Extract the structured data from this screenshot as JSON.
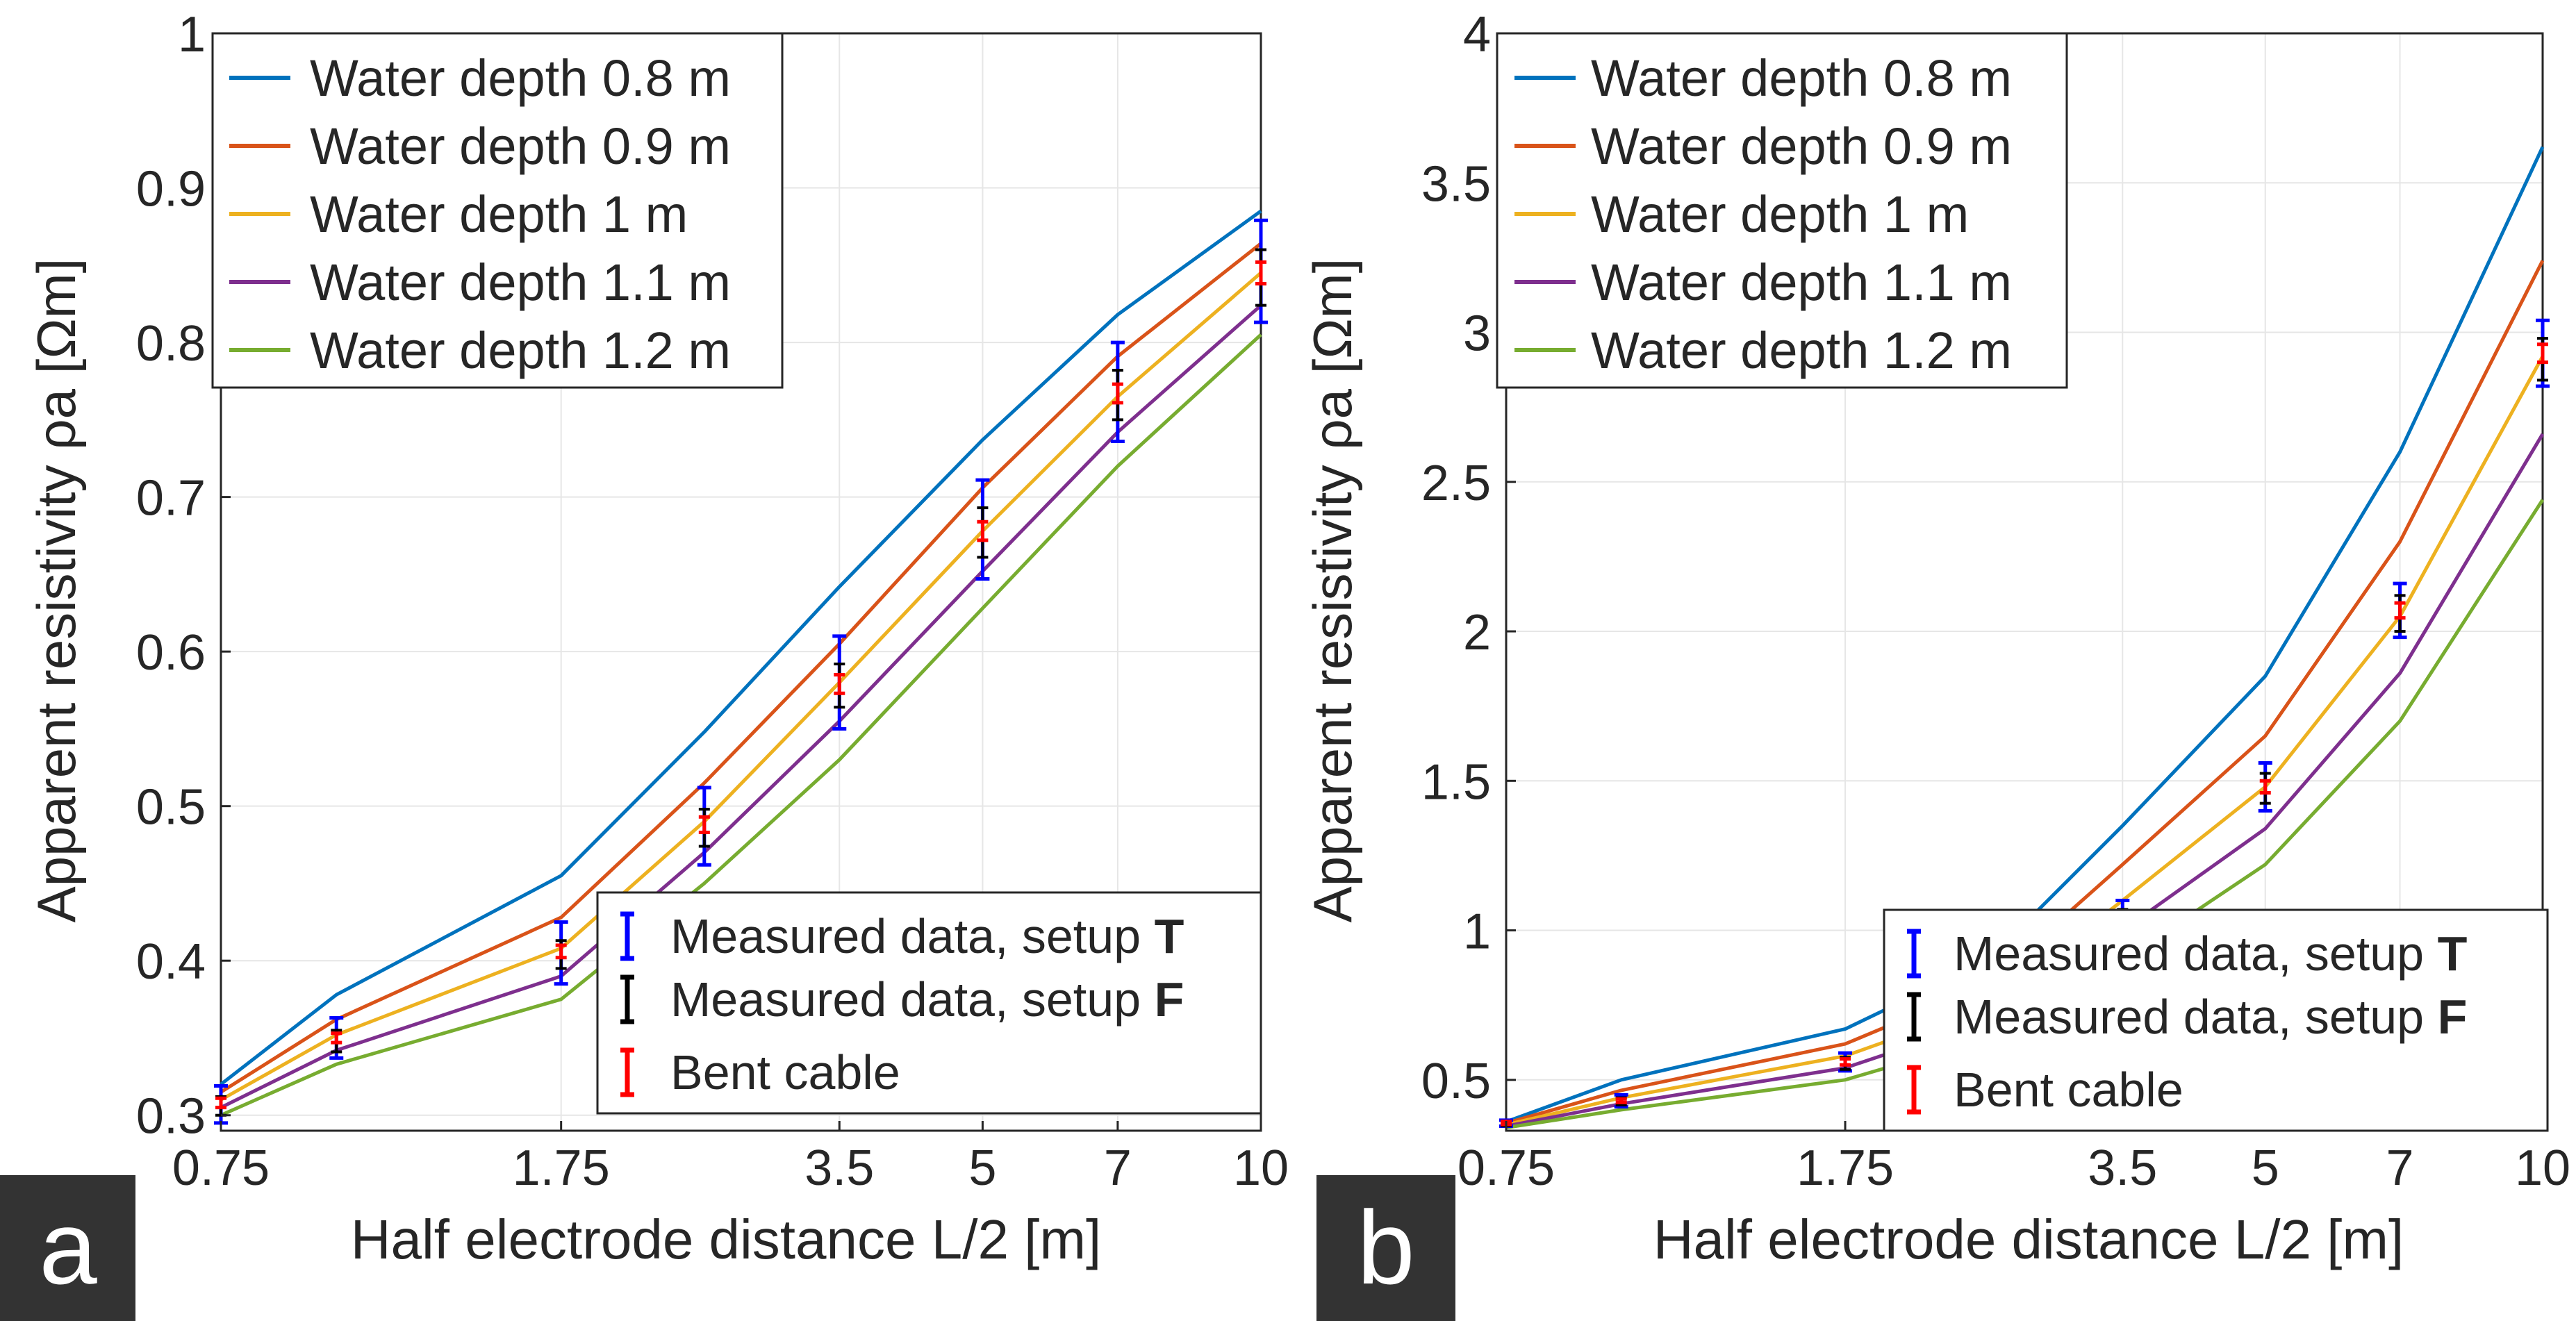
{
  "panels": [
    {
      "label": "a",
      "ylabel": "Apparent resistivity ρa [Ωm]",
      "xlabel": "Half electrode distance L/2 [m]",
      "chart_data": {
        "type": "line",
        "title": "",
        "xlabel": "Half electrode distance L/2 [m]",
        "ylabel": "Apparent resistivity ρa [Ωm]",
        "x_ticks": [
          0.75,
          1.75,
          3.5,
          5,
          7,
          10
        ],
        "x_ticks_scale": "log",
        "x_tick_labels": [
          "0.75",
          "1.75",
          "3.5",
          "5",
          "7",
          "10"
        ],
        "xlim": [
          0.75,
          10
        ],
        "ylim": [
          0.29,
          1.0
        ],
        "y_ticks": [
          0.3,
          0.4,
          0.5,
          0.6,
          0.7,
          0.8,
          0.9,
          1
        ],
        "y_tick_labels": [
          "0.3",
          "0.4",
          "0.5",
          "0.6",
          "0.7",
          "0.8",
          "0.9",
          "1"
        ],
        "grid": true,
        "x": [
          0.75,
          1.0,
          1.75,
          2.5,
          3.5,
          5,
          7,
          10
        ],
        "series": [
          {
            "name": "Water depth 0.8 m",
            "color": "#0072BD",
            "values": [
              0.32,
              0.378,
              0.455,
              0.548,
              0.642,
              0.737,
              0.818,
              0.885
            ]
          },
          {
            "name": "Water depth 0.9 m",
            "color": "#D95319",
            "values": [
              0.315,
              0.362,
              0.428,
              0.515,
              0.605,
              0.706,
              0.791,
              0.864
            ]
          },
          {
            "name": "Water depth 1 m",
            "color": "#EDB120",
            "values": [
              0.31,
              0.352,
              0.408,
              0.49,
              0.58,
              0.678,
              0.765,
              0.845
            ]
          },
          {
            "name": "Water depth 1.1 m",
            "color": "#7E2F8E",
            "values": [
              0.305,
              0.342,
              0.39,
              0.47,
              0.555,
              0.652,
              0.742,
              0.824
            ]
          },
          {
            "name": "Water depth 1.2 m",
            "color": "#77AC30",
            "values": [
              0.3,
              0.333,
              0.375,
              0.45,
              0.53,
              0.628,
              0.72,
              0.805
            ]
          }
        ],
        "measured": {
          "x": [
            0.75,
            1.0,
            1.75,
            2.5,
            3.5,
            5,
            7,
            10
          ],
          "setup_T": {
            "name": "Measured data, setup T",
            "color": "#0000FF",
            "values": [
              0.307,
              0.35,
              0.405,
              0.487,
              0.58,
              0.679,
              0.768,
              0.846
            ],
            "errors": [
              0.012,
              0.013,
              0.02,
              0.025,
              0.03,
              0.032,
              0.032,
              0.033
            ]
          },
          "setup_F": {
            "name": "Measured data, setup F",
            "color": "#000000",
            "values": [
              0.306,
              0.348,
              0.404,
              0.486,
              0.578,
              0.677,
              0.766,
              0.842
            ],
            "errors": [
              0.006,
              0.007,
              0.009,
              0.012,
              0.014,
              0.016,
              0.016,
              0.018
            ]
          },
          "bent_cable": {
            "name": "Bent cable",
            "color": "#FF0000",
            "values": [
              0.308,
              0.35,
              0.406,
              0.488,
              0.579,
              0.678,
              0.767,
              0.845
            ],
            "errors": [
              0.003,
              0.003,
              0.004,
              0.005,
              0.006,
              0.006,
              0.006,
              0.007
            ]
          }
        },
        "legend_lines_position": "top-left",
        "legend_markers_position": "bottom-right"
      }
    },
    {
      "label": "b",
      "ylabel": "Apparent resistivity ρa [Ωm]",
      "xlabel": "Half electrode distance L/2 [m]",
      "chart_data": {
        "type": "line",
        "title": "",
        "xlabel": "Half electrode distance L/2 [m]",
        "ylabel": "Apparent resistivity ρa [Ωm]",
        "x_ticks": [
          0.75,
          1.75,
          3.5,
          5,
          7,
          10
        ],
        "x_ticks_scale": "log",
        "x_tick_labels": [
          "0.75",
          "1.75",
          "3.5",
          "5",
          "7",
          "10"
        ],
        "xlim": [
          0.75,
          10
        ],
        "ylim": [
          0.33,
          4.0
        ],
        "y_ticks": [
          0.5,
          1,
          1.5,
          2,
          2.5,
          3,
          3.5,
          4
        ],
        "y_tick_labels": [
          "0.5",
          "1",
          "1.5",
          "2",
          "2.5",
          "3",
          "3.5",
          "4"
        ],
        "grid": true,
        "x": [
          0.75,
          1.0,
          1.75,
          2.5,
          3.5,
          5,
          7,
          10
        ],
        "series": [
          {
            "name": "Water depth 0.8 m",
            "color": "#0072BD",
            "values": [
              0.36,
              0.5,
              0.67,
              0.9,
              1.35,
              1.85,
              2.6,
              3.62
            ]
          },
          {
            "name": "Water depth 0.9 m",
            "color": "#D95319",
            "values": [
              0.355,
              0.465,
              0.62,
              0.82,
              1.22,
              1.65,
              2.3,
              3.24
            ]
          },
          {
            "name": "Water depth 1 m",
            "color": "#EDB120",
            "values": [
              0.35,
              0.44,
              0.58,
              0.75,
              1.1,
              1.48,
              2.05,
              2.92
            ]
          },
          {
            "name": "Water depth 1.1 m",
            "color": "#7E2F8E",
            "values": [
              0.345,
              0.42,
              0.54,
              0.7,
              1.0,
              1.34,
              1.86,
              2.66
            ]
          },
          {
            "name": "Water depth 1.2 m",
            "color": "#77AC30",
            "values": [
              0.34,
              0.4,
              0.5,
              0.64,
              0.9,
              1.22,
              1.7,
              2.44
            ]
          }
        ],
        "measured": {
          "x": [
            0.75,
            1.0,
            1.75,
            2.5,
            3.5,
            5,
            7,
            10
          ],
          "setup_T": {
            "name": "Measured data, setup T",
            "color": "#0000FF",
            "values": [
              0.355,
              0.43,
              0.56,
              0.75,
              1.04,
              1.48,
              2.07,
              2.93
            ],
            "errors": [
              0.01,
              0.02,
              0.03,
              0.04,
              0.06,
              0.08,
              0.09,
              0.11
            ]
          },
          "setup_F": {
            "name": "Measured data, setup F",
            "color": "#000000",
            "values": [
              0.354,
              0.428,
              0.555,
              0.745,
              1.035,
              1.475,
              2.06,
              2.91
            ],
            "errors": [
              0.008,
              0.012,
              0.02,
              0.025,
              0.035,
              0.05,
              0.06,
              0.07
            ]
          },
          "bent_cable": {
            "name": "Bent cable",
            "color": "#FF0000",
            "values": [
              0.356,
              0.43,
              0.56,
              0.75,
              1.04,
              1.48,
              2.07,
              2.93
            ],
            "errors": [
              0.005,
              0.006,
              0.01,
              0.012,
              0.015,
              0.02,
              0.025,
              0.03
            ]
          }
        },
        "legend_lines_position": "top-left",
        "legend_markers_position": "bottom-right"
      }
    }
  ]
}
